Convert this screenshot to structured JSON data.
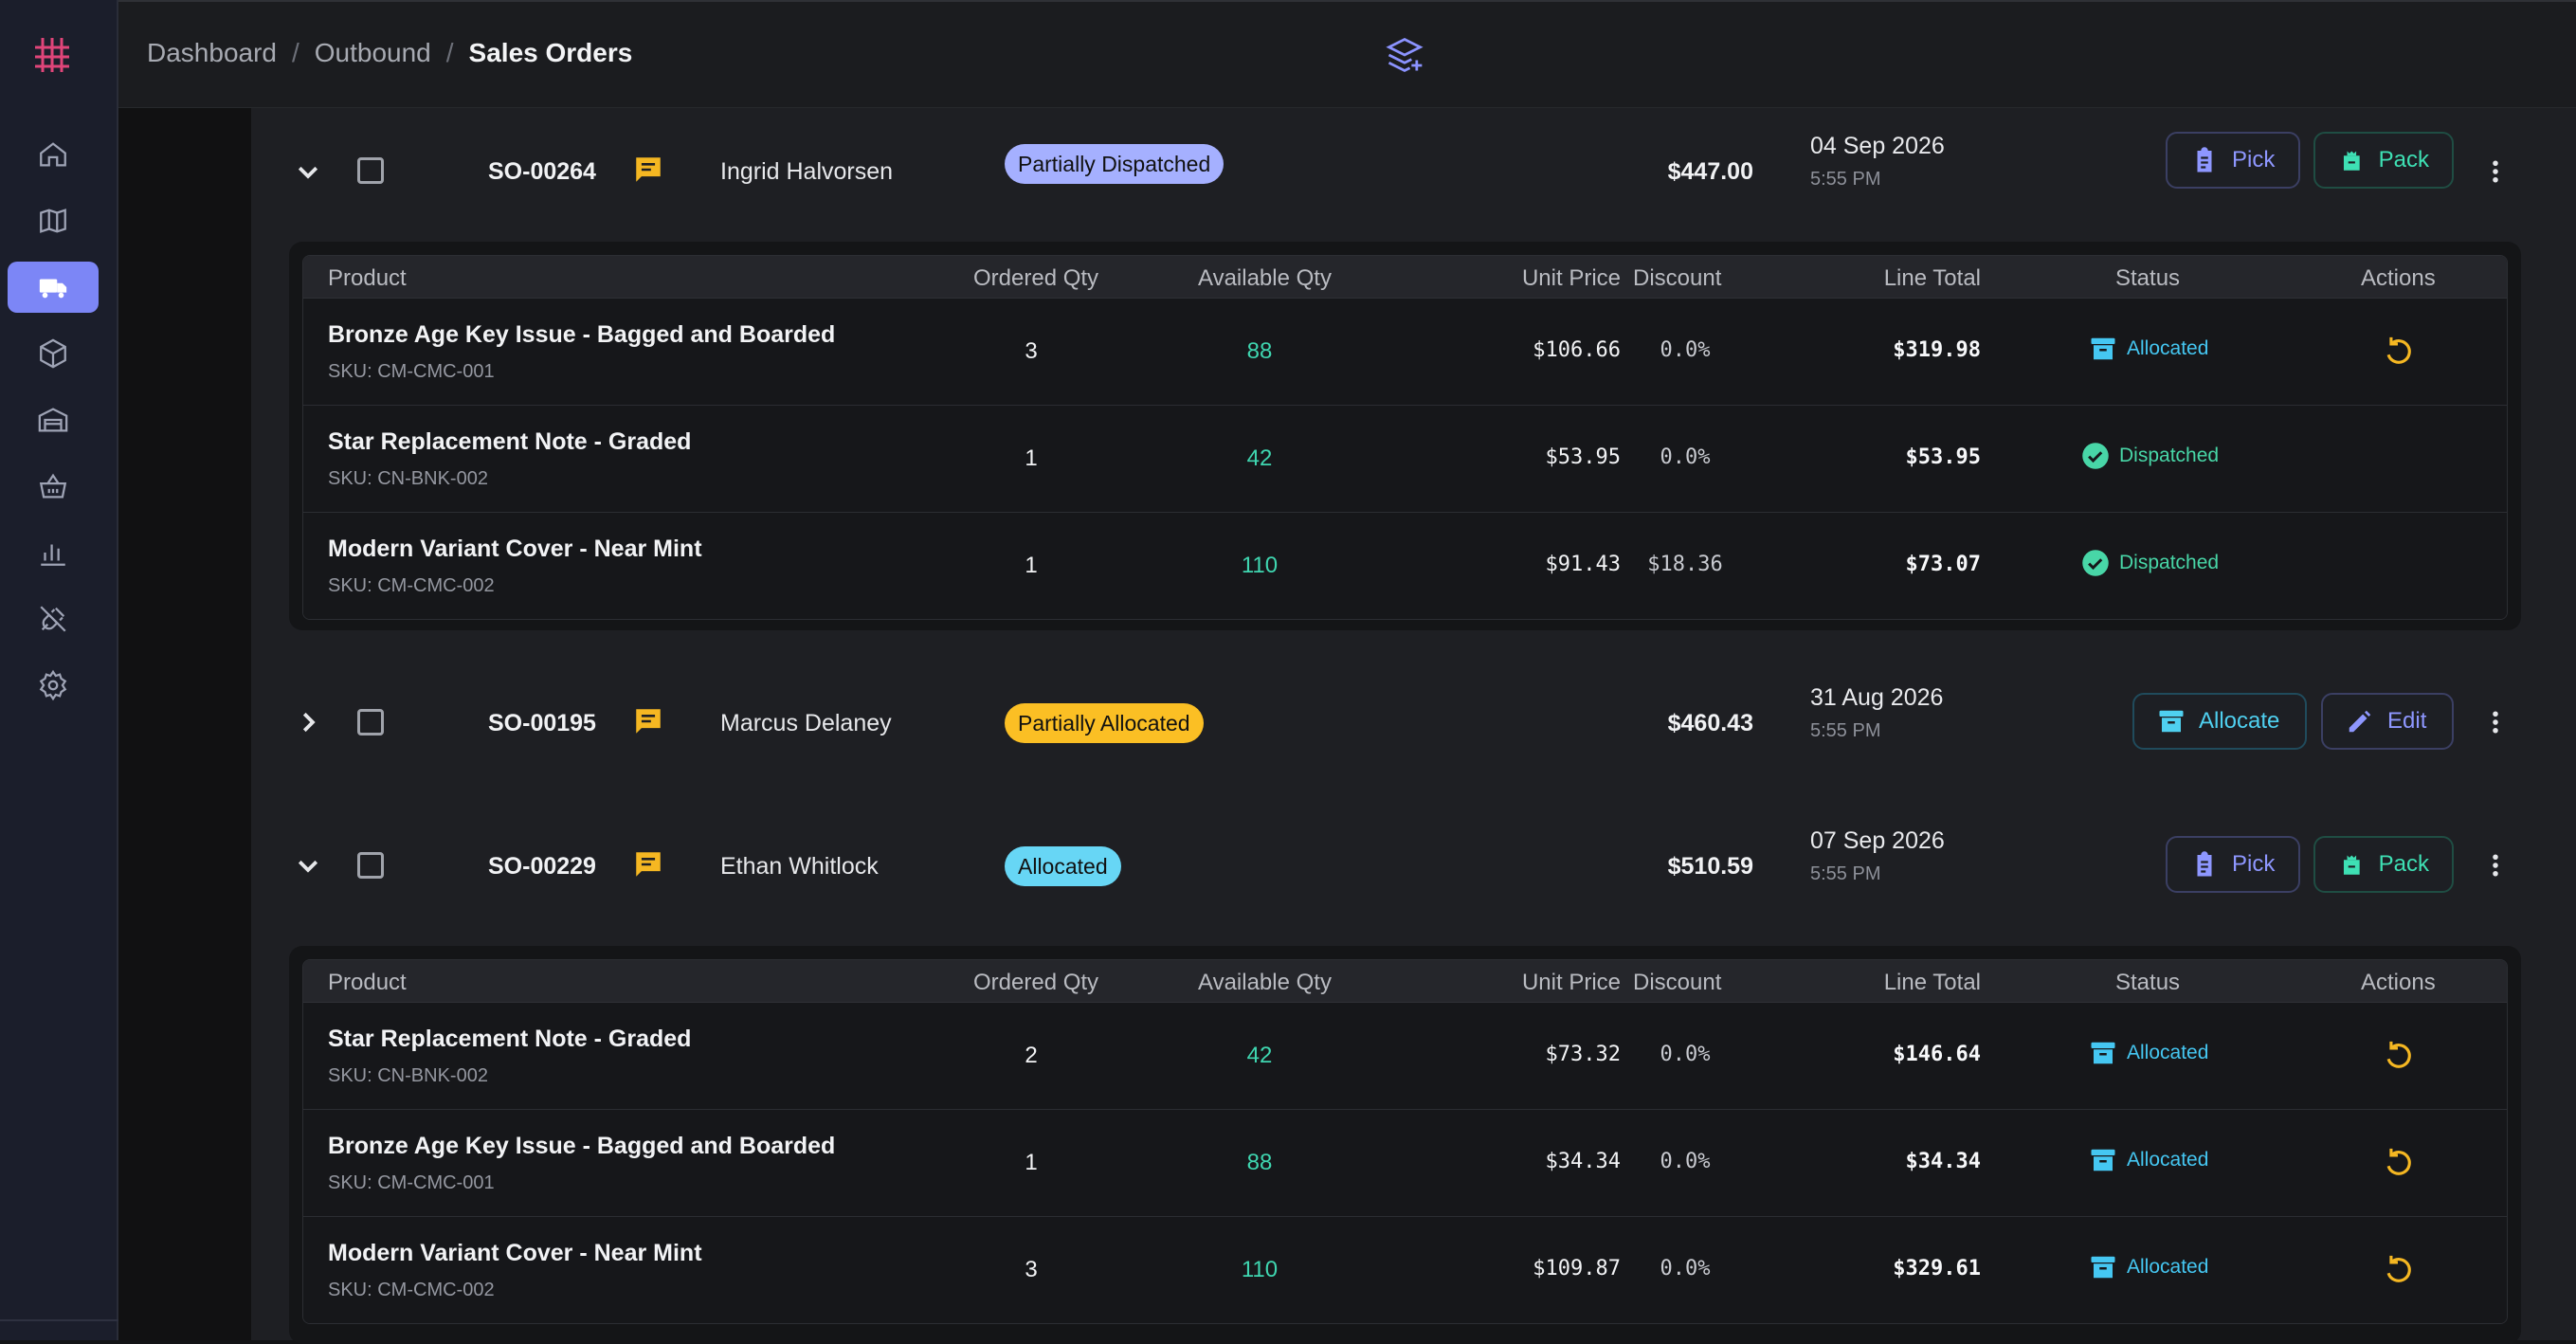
{
  "breadcrumb": {
    "items": [
      "Dashboard",
      "Outbound"
    ],
    "separator": "/",
    "current": "Sales Orders"
  },
  "item_columns": {
    "product": "Product",
    "ordered": "Ordered Qty",
    "available": "Available Qty",
    "unit_price": "Unit Price",
    "discount": "Discount",
    "line_total": "Line Total",
    "status": "Status",
    "actions": "Actions"
  },
  "orders": [
    {
      "id": "SO-00264",
      "customer": "Ingrid Halvorsen",
      "status": "Partially Dispatched",
      "total": "$447.00",
      "date": "04 Sep 2026",
      "time": "5:55 PM",
      "expanded": true,
      "buttons": [
        "Pick",
        "Pack"
      ],
      "items": [
        {
          "name": "Bronze Age Key Issue - Bagged and Boarded",
          "sku": "SKU: CM-CMC-001",
          "ordered": "3",
          "available": "88",
          "unit_price": "$106.66",
          "discount": "0.0%",
          "line_total": "$319.98",
          "status": "Allocated"
        },
        {
          "name": "Star Replacement Note - Graded",
          "sku": "SKU: CN-BNK-002",
          "ordered": "1",
          "available": "42",
          "unit_price": "$53.95",
          "discount": "0.0%",
          "line_total": "$53.95",
          "status": "Dispatched"
        },
        {
          "name": "Modern Variant Cover - Near Mint",
          "sku": "SKU: CM-CMC-002",
          "ordered": "1",
          "available": "110",
          "unit_price": "$91.43",
          "discount": "$18.36",
          "line_total": "$73.07",
          "status": "Dispatched"
        }
      ]
    },
    {
      "id": "SO-00195",
      "customer": "Marcus Delaney",
      "status": "Partially Allocated",
      "total": "$460.43",
      "date": "31 Aug 2026",
      "time": "5:55 PM",
      "expanded": false,
      "buttons": [
        "Allocate",
        "Edit"
      ]
    },
    {
      "id": "SO-00229",
      "customer": "Ethan Whitlock",
      "status": "Allocated",
      "total": "$510.59",
      "date": "07 Sep 2026",
      "time": "5:55 PM",
      "expanded": true,
      "buttons": [
        "Pick",
        "Pack"
      ],
      "items": [
        {
          "name": "Star Replacement Note - Graded",
          "sku": "SKU: CN-BNK-002",
          "ordered": "2",
          "available": "42",
          "unit_price": "$73.32",
          "discount": "0.0%",
          "line_total": "$146.64",
          "status": "Allocated"
        },
        {
          "name": "Bronze Age Key Issue - Bagged and Boarded",
          "sku": "SKU: CM-CMC-001",
          "ordered": "1",
          "available": "88",
          "unit_price": "$34.34",
          "discount": "0.0%",
          "line_total": "$34.34",
          "status": "Allocated"
        },
        {
          "name": "Modern Variant Cover - Near Mint",
          "sku": "SKU: CM-CMC-002",
          "ordered": "3",
          "available": "110",
          "unit_price": "$109.87",
          "discount": "0.0%",
          "line_total": "$329.61",
          "status": "Allocated"
        }
      ]
    }
  ],
  "colors": {
    "accent": "#7c86f6",
    "badge_partially_dispatched": "#a5b0ff",
    "badge_partially_allocated": "#fbbf24",
    "badge_allocated": "#67d6f5",
    "available_qty": "#3fd6b0",
    "status_allocated": "#45c7f2",
    "status_dispatched": "#48d6a7"
  },
  "sidebar_icons": [
    "home-icon",
    "map-icon",
    "truck-icon",
    "box-icon",
    "warehouse-icon",
    "basket-icon",
    "bar-chart-icon",
    "plug-icon",
    "gear-icon"
  ]
}
